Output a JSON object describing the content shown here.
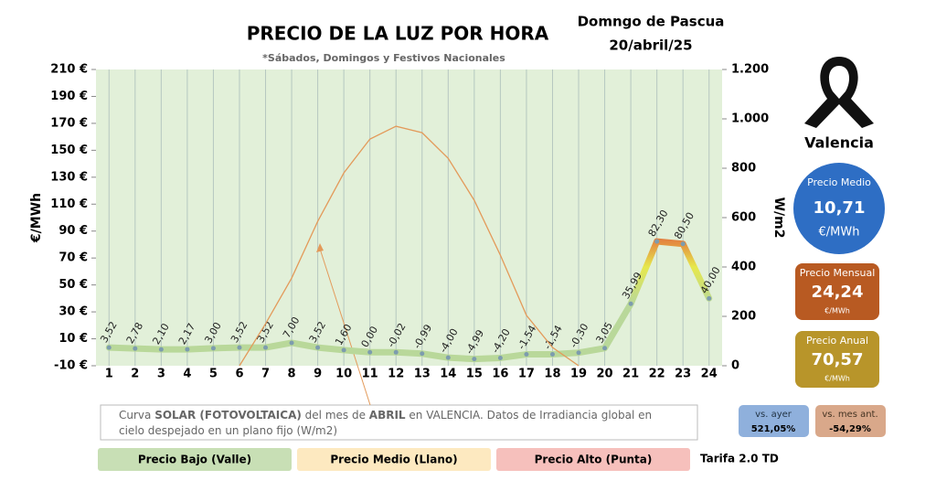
{
  "chart_data": {
    "type": "line",
    "title": "PRECIO DE LA LUZ POR HORA",
    "subtitle": "*Sábados, Domingos y Festivos Nacionales",
    "ylabel": "€/MWh",
    "y2label": "W/m2",
    "categories": [
      "1",
      "2",
      "3",
      "4",
      "5",
      "6",
      "7",
      "8",
      "9",
      "10",
      "11",
      "12",
      "13",
      "14",
      "15",
      "16",
      "17",
      "18",
      "19",
      "20",
      "21",
      "22",
      "23",
      "24"
    ],
    "series": [
      {
        "gradient": [
          "#b9d89a",
          "#e6e84c",
          "#e2583a"
        ],
        "marker_color": "#7d9cae",
        "values": [
          3.52,
          2.78,
          2.1,
          2.17,
          3.0,
          3.52,
          3.52,
          7.0,
          3.52,
          1.6,
          0.0,
          -0.02,
          -0.99,
          -4.0,
          -4.99,
          -4.2,
          -1.54,
          -1.54,
          -0.3,
          3.05,
          35.99,
          82.3,
          80.5,
          40.0
        ],
        "value_labels": [
          "3,52",
          "2,78",
          "2,10",
          "2,17",
          "3,00",
          "3,52",
          "3,52",
          "7,00",
          "3,52",
          "1,60",
          "0,00",
          "-0,02",
          "-0,99",
          "-4,00",
          "-4,99",
          "-4,20",
          "-1,54",
          "-1,54",
          "-0,30",
          "3,05",
          "35,99",
          "82,30",
          "80,50",
          "40,00"
        ]
      },
      {
        "axis": "y2",
        "color": "#e39a5a",
        "values": [
          null,
          null,
          null,
          null,
          null,
          0,
          170,
          355,
          585,
          781,
          918,
          970,
          944,
          840,
          670,
          448,
          204,
          74,
          0,
          null,
          null,
          null,
          null,
          null
        ]
      }
    ],
    "ylim": [
      -10,
      210
    ],
    "yticks": [
      {
        "value": -10,
        "label": "-10 €"
      },
      {
        "value": 10,
        "label": "10 €"
      },
      {
        "value": 30,
        "label": "30 €"
      },
      {
        "value": 50,
        "label": "50 €"
      },
      {
        "value": 70,
        "label": "70 €"
      },
      {
        "value": 90,
        "label": "90 €"
      },
      {
        "value": 110,
        "label": "110 €"
      },
      {
        "value": 130,
        "label": "130 €"
      },
      {
        "value": 150,
        "label": "150 €"
      },
      {
        "value": 170,
        "label": "170 €"
      },
      {
        "value": 190,
        "label": "190 €"
      },
      {
        "value": 210,
        "label": "210 €"
      }
    ],
    "y2lim": [
      0,
      1200
    ],
    "y2ticks": [
      0,
      200,
      400,
      600,
      800,
      {
        "value": 1000,
        "label": "1.000"
      },
      {
        "value": 1200,
        "label": "1.200"
      }
    ],
    "plot_color": "#e2f0d9"
  },
  "header": {
    "day": "Domngo de Pascua",
    "date": "20/abril/25"
  },
  "panel": {
    "city": "Valencia",
    "medio": {
      "label": "Precio Medio",
      "value": "10,71",
      "unit": "€/MWh"
    },
    "mensual": {
      "label": "Precio Mensual",
      "value": "24,24",
      "unit": "€/MWh"
    },
    "anual": {
      "label": "Precio Anual",
      "value": "70,57",
      "unit": "€/MWh"
    },
    "ayer": {
      "label": "vs. ayer",
      "value": "521,05%"
    },
    "mes": {
      "label": "vs. mes ant.",
      "value": "-54,29%"
    }
  },
  "note": [
    "Curva ",
    "SOLAR (FOTOVOLTAICA)",
    " del mes de ",
    "ABRIL",
    " en VALENCIA. Datos de Irradiancia global en cielo despejado en un plano fijo (W/m2)"
  ],
  "legend": [
    "Precio Bajo (Valle)",
    "Precio Medio (Llano)",
    "Precio Alto (Punta)"
  ],
  "tarifa": "Tarifa 2.0 TD"
}
